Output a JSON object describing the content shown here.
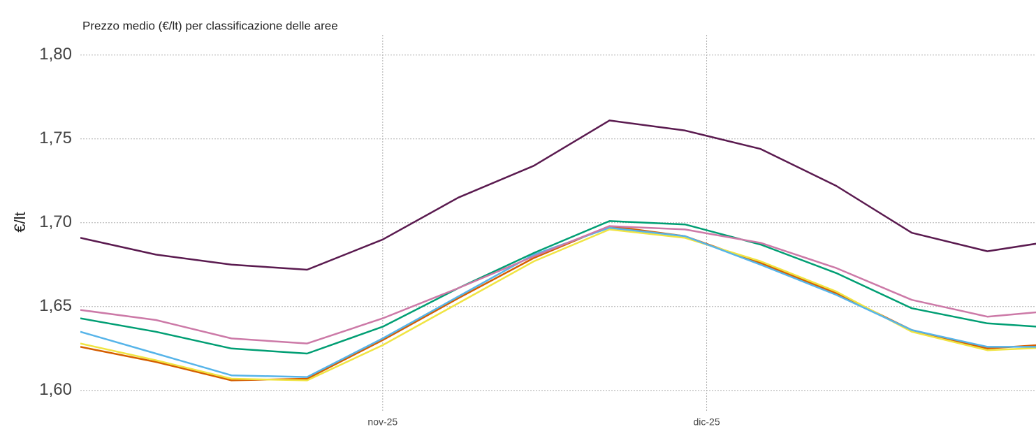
{
  "chart_data": {
    "type": "line",
    "title": "Prezzo medio (€/lt) per classificazione delle aree",
    "y_label": "€/lt",
    "x": [
      0,
      7,
      14,
      21,
      28,
      35,
      42,
      49,
      56,
      63,
      70,
      77,
      84,
      91
    ],
    "xlim": [
      0,
      88.5
    ],
    "xticks": [
      {
        "value": 28,
        "label": "nov-25"
      },
      {
        "value": 58,
        "label": "dic-25"
      }
    ],
    "ylim": [
      1.587,
      1.812
    ],
    "yticks": [
      {
        "value": 1.6,
        "label": "1,60"
      },
      {
        "value": 1.65,
        "label": "1,65"
      },
      {
        "value": 1.7,
        "label": "1,70"
      },
      {
        "value": 1.75,
        "label": "1,75"
      },
      {
        "value": 1.8,
        "label": "1,80"
      }
    ],
    "grid": true,
    "series": [
      {
        "color": "#d55e00",
        "values": [
          1.626,
          1.617,
          1.606,
          1.607,
          1.63,
          1.655,
          1.679,
          1.698,
          1.692,
          1.676,
          1.658,
          1.636,
          1.625,
          1.628
        ]
      },
      {
        "color": "#f0e442",
        "values": [
          1.628,
          1.618,
          1.607,
          1.606,
          1.627,
          1.652,
          1.677,
          1.696,
          1.691,
          1.677,
          1.659,
          1.635,
          1.624,
          1.626
        ]
      },
      {
        "color": "#56b4e9",
        "values": [
          1.635,
          1.622,
          1.609,
          1.608,
          1.631,
          1.656,
          1.681,
          1.697,
          1.692,
          1.675,
          1.657,
          1.636,
          1.626,
          1.626
        ]
      },
      {
        "color": "#009e73",
        "values": [
          1.643,
          1.635,
          1.625,
          1.622,
          1.638,
          1.661,
          1.682,
          1.701,
          1.699,
          1.687,
          1.67,
          1.649,
          1.64,
          1.637
        ]
      },
      {
        "color": "#cc79a7",
        "values": [
          1.648,
          1.642,
          1.631,
          1.628,
          1.643,
          1.661,
          1.68,
          1.698,
          1.696,
          1.688,
          1.673,
          1.654,
          1.644,
          1.648
        ]
      },
      {
        "color": "#5a1a4f",
        "values": [
          1.691,
          1.681,
          1.675,
          1.672,
          1.69,
          1.715,
          1.734,
          1.761,
          1.755,
          1.744,
          1.722,
          1.694,
          1.683,
          1.69
        ]
      }
    ]
  }
}
